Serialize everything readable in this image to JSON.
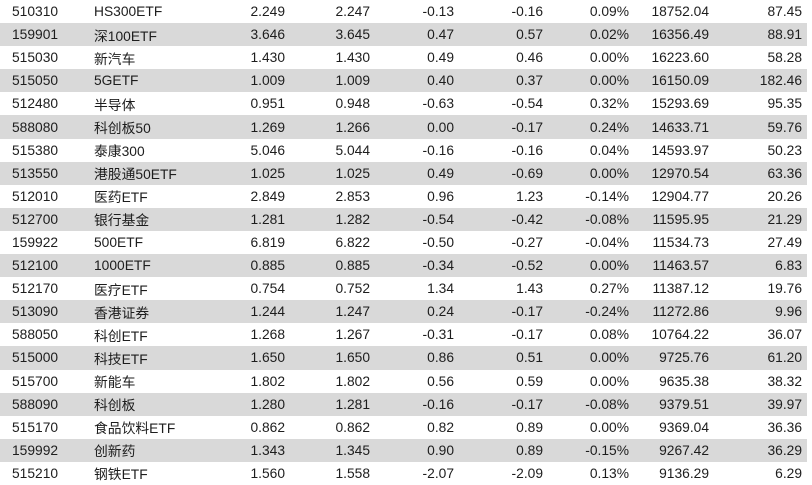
{
  "colors": {
    "background": "#ffffff",
    "row_stripe": "#d9d9d9",
    "text": "#1d1d1d"
  },
  "table": {
    "rows": [
      {
        "cells": [
          "510310",
          "HS300ETF",
          "2.249",
          "2.247",
          "-0.13",
          "-0.16",
          "0.09%",
          "18752.04",
          "87.45"
        ]
      },
      {
        "cells": [
          "159901",
          "深100ETF",
          "3.646",
          "3.645",
          "0.47",
          "0.57",
          "0.02%",
          "16356.49",
          "88.91"
        ]
      },
      {
        "cells": [
          "515030",
          "新汽车",
          "1.430",
          "1.430",
          "0.49",
          "0.46",
          "0.00%",
          "16223.60",
          "58.28"
        ]
      },
      {
        "cells": [
          "515050",
          "5GETF",
          "1.009",
          "1.009",
          "0.40",
          "0.37",
          "0.00%",
          "16150.09",
          "182.46"
        ]
      },
      {
        "cells": [
          "512480",
          "半导体",
          "0.951",
          "0.948",
          "-0.63",
          "-0.54",
          "0.32%",
          "15293.69",
          "95.35"
        ]
      },
      {
        "cells": [
          "588080",
          "科创板50",
          "1.269",
          "1.266",
          "0.00",
          "-0.17",
          "0.24%",
          "14633.71",
          "59.76"
        ]
      },
      {
        "cells": [
          "515380",
          "泰康300",
          "5.046",
          "5.044",
          "-0.16",
          "-0.16",
          "0.04%",
          "14593.97",
          "50.23"
        ]
      },
      {
        "cells": [
          "513550",
          "港股通50ETF",
          "1.025",
          "1.025",
          "0.49",
          "-0.69",
          "0.00%",
          "12970.54",
          "63.36"
        ]
      },
      {
        "cells": [
          "512010",
          "医药ETF",
          "2.849",
          "2.853",
          "0.96",
          "1.23",
          "-0.14%",
          "12904.77",
          "20.26"
        ]
      },
      {
        "cells": [
          "512700",
          "银行基金",
          "1.281",
          "1.282",
          "-0.54",
          "-0.42",
          "-0.08%",
          "11595.95",
          "21.29"
        ]
      },
      {
        "cells": [
          "159922",
          "500ETF",
          "6.819",
          "6.822",
          "-0.50",
          "-0.27",
          "-0.04%",
          "11534.73",
          "27.49"
        ]
      },
      {
        "cells": [
          "512100",
          "1000ETF",
          "0.885",
          "0.885",
          "-0.34",
          "-0.52",
          "0.00%",
          "11463.57",
          "6.83"
        ]
      },
      {
        "cells": [
          "512170",
          "医疗ETF",
          "0.754",
          "0.752",
          "1.34",
          "1.43",
          "0.27%",
          "11387.12",
          "19.76"
        ]
      },
      {
        "cells": [
          "513090",
          "香港证券",
          "1.244",
          "1.247",
          "0.24",
          "-0.17",
          "-0.24%",
          "11272.86",
          "9.96"
        ]
      },
      {
        "cells": [
          "588050",
          "科创ETF",
          "1.268",
          "1.267",
          "-0.31",
          "-0.17",
          "0.08%",
          "10764.22",
          "36.07"
        ]
      },
      {
        "cells": [
          "515000",
          "科技ETF",
          "1.650",
          "1.650",
          "0.86",
          "0.51",
          "0.00%",
          "9725.76",
          "61.20"
        ]
      },
      {
        "cells": [
          "515700",
          "新能车",
          "1.802",
          "1.802",
          "0.56",
          "0.59",
          "0.00%",
          "9635.38",
          "38.32"
        ]
      },
      {
        "cells": [
          "588090",
          "科创板",
          "1.280",
          "1.281",
          "-0.16",
          "-0.17",
          "-0.08%",
          "9379.51",
          "39.97"
        ]
      },
      {
        "cells": [
          "515170",
          "食品饮料ETF",
          "0.862",
          "0.862",
          "0.82",
          "0.89",
          "0.00%",
          "9369.04",
          "36.36"
        ]
      },
      {
        "cells": [
          "159992",
          "创新药",
          "1.343",
          "1.345",
          "0.90",
          "0.89",
          "-0.15%",
          "9267.42",
          "36.29"
        ]
      },
      {
        "cells": [
          "515210",
          "钢铁ETF",
          "1.560",
          "1.558",
          "-2.07",
          "-2.09",
          "0.13%",
          "9136.29",
          "6.29"
        ]
      }
    ]
  }
}
